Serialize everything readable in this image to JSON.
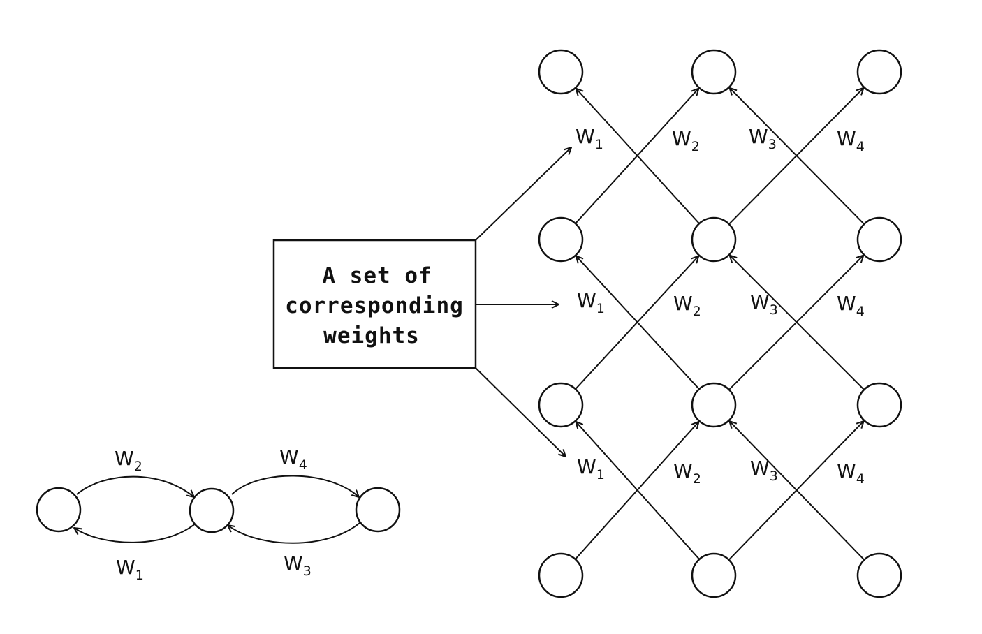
{
  "box": {
    "lines": [
      "A set of",
      "corresponding",
      "weights"
    ]
  },
  "weights": {
    "w1": {
      "base": "W",
      "sub": "1"
    },
    "w2": {
      "base": "W",
      "sub": "2"
    },
    "w3": {
      "base": "W",
      "sub": "3"
    },
    "w4": {
      "base": "W",
      "sub": "4"
    }
  },
  "small_network": {
    "nodes": [
      "a",
      "b",
      "c"
    ],
    "edges": [
      {
        "from": "a",
        "to": "b",
        "weight": "w2"
      },
      {
        "from": "b",
        "to": "a",
        "weight": "w1"
      },
      {
        "from": "b",
        "to": "c",
        "weight": "w4"
      },
      {
        "from": "c",
        "to": "b",
        "weight": "w3"
      }
    ]
  },
  "lattice": {
    "columns": 3,
    "rows": 4,
    "layer_edges": [
      {
        "from_col": 0,
        "to_col": 1,
        "weight": "w2"
      },
      {
        "from_col": 1,
        "to_col": 0,
        "weight": "w1"
      },
      {
        "from_col": 1,
        "to_col": 2,
        "weight": "w4"
      },
      {
        "from_col": 2,
        "to_col": 1,
        "weight": "w3"
      }
    ]
  }
}
